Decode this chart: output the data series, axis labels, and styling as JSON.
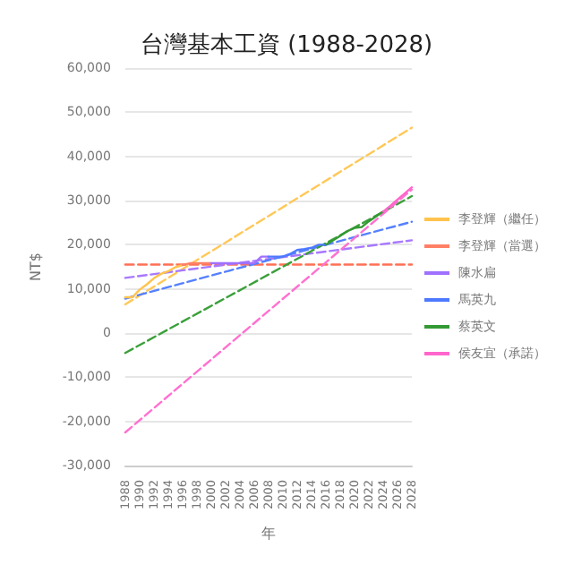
{
  "chart_data": {
    "type": "line",
    "title": "台灣基本工資 (1988-2028)",
    "xlabel": "年",
    "ylabel": "NT$",
    "xlim": [
      1988,
      2028
    ],
    "xticks": [
      1988,
      1990,
      1992,
      1994,
      1996,
      1998,
      2000,
      2002,
      2004,
      2006,
      2008,
      2010,
      2012,
      2014,
      2016,
      2018,
      2020,
      2022,
      2024,
      2026,
      2028
    ],
    "ylim": [
      -30000,
      60000
    ],
    "yticks": [
      {
        "value": -30000,
        "label": "-30,000"
      },
      {
        "value": -20000,
        "label": "-20,000"
      },
      {
        "value": -10000,
        "label": "-10,000"
      },
      0,
      {
        "value": 10000,
        "label": "10,000"
      },
      {
        "value": 20000,
        "label": "20,000"
      },
      {
        "value": 30000,
        "label": "30,000"
      },
      {
        "value": 40000,
        "label": "40,000"
      },
      {
        "value": 50000,
        "label": "50,000"
      },
      {
        "value": 60000,
        "label": "60,000"
      }
    ],
    "grid": "y",
    "legend": "right",
    "marker": "none",
    "series": [
      {
        "name": "李登輝（繼任）",
        "color": "#ffc34d",
        "line_style": "solid",
        "x": [
          1988,
          1989,
          1990,
          1991,
          1992,
          1993,
          1994,
          1995,
          1996
        ],
        "values": [
          8100,
          8100,
          9800,
          11000,
          12400,
          13400,
          14000,
          14900,
          15400
        ]
      },
      {
        "name": "李登輝（當選）",
        "color": "#ff8066",
        "line_style": "solid",
        "x": [
          1996,
          1997,
          1998,
          1999,
          2000
        ],
        "values": [
          15400,
          15800,
          15800,
          15800,
          15800
        ]
      },
      {
        "name": "陳水扁",
        "color": "#a070ff",
        "line_style": "solid",
        "x": [
          2000,
          2001,
          2002,
          2003,
          2004,
          2005,
          2006,
          2007,
          2008
        ],
        "values": [
          15800,
          15800,
          15800,
          15800,
          15800,
          15800,
          15800,
          17300,
          17300
        ]
      },
      {
        "name": "馬英九",
        "color": "#4d79ff",
        "line_style": "solid",
        "x": [
          2008,
          2009,
          2010,
          2011,
          2012,
          2013,
          2014,
          2015,
          2016
        ],
        "values": [
          17300,
          17300,
          17300,
          17900,
          18800,
          19000,
          19300,
          20000,
          20000
        ]
      },
      {
        "name": "蔡英文",
        "color": "#339933",
        "line_style": "solid",
        "x": [
          2016,
          2017,
          2018,
          2019,
          2020,
          2021,
          2022,
          2023,
          2024
        ],
        "values": [
          20000,
          21000,
          22000,
          23100,
          23800,
          24000,
          25300,
          26400,
          27500
        ]
      },
      {
        "name": "侯友宜（承諾）",
        "color": "#ff66cc",
        "line_style": "solid",
        "x": [
          2024,
          2025,
          2026,
          2027,
          2028
        ],
        "values": [
          27500,
          28800,
          30200,
          31600,
          33000
        ]
      },
      {
        "color": "#ffc857",
        "line_style": "dashed",
        "x": [
          1988,
          2028
        ],
        "values": [
          6500,
          46500
        ]
      },
      {
        "color": "#ff7055",
        "line_style": "dashed",
        "x": [
          1988,
          2028
        ],
        "values": [
          15500,
          15500
        ]
      },
      {
        "color": "#a878ff",
        "line_style": "dashed",
        "x": [
          1988,
          2028
        ],
        "values": [
          12500,
          21000
        ]
      },
      {
        "color": "#5580ff",
        "line_style": "dashed",
        "x": [
          1988,
          2028
        ],
        "values": [
          7800,
          25200
        ]
      },
      {
        "color": "#3aa03a",
        "line_style": "dashed",
        "x": [
          1988,
          2028
        ],
        "values": [
          -4500,
          31000
        ]
      },
      {
        "color": "#ff70d0",
        "line_style": "dashed",
        "x": [
          1988,
          2028
        ],
        "values": [
          -22500,
          32500
        ]
      }
    ]
  }
}
